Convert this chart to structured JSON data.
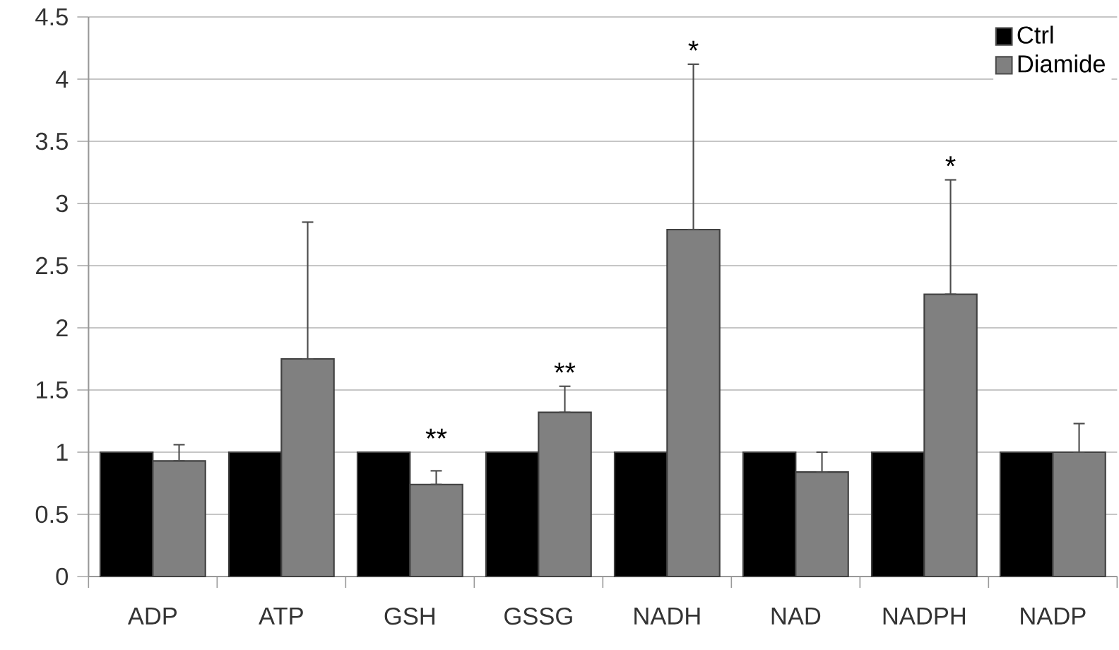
{
  "chart_data": {
    "type": "bar",
    "categories": [
      "ADP",
      "ATP",
      "GSH",
      "GSSG",
      "NADH",
      "NAD",
      "NADPH",
      "NADP"
    ],
    "series": [
      {
        "name": "Ctrl",
        "color": "#000000",
        "values": [
          1,
          1,
          1,
          1,
          1,
          1,
          1,
          1
        ]
      },
      {
        "name": "Diamide",
        "color": "#808080",
        "values": [
          0.93,
          1.75,
          0.74,
          1.32,
          2.79,
          0.84,
          2.27,
          1.0
        ],
        "errors": [
          [
            0.93,
            1.06
          ],
          [
            1.75,
            2.85
          ],
          [
            0.74,
            0.85
          ],
          [
            1.32,
            1.53
          ],
          [
            2.79,
            4.12
          ],
          [
            0.84,
            1.0
          ],
          [
            2.27,
            3.19
          ],
          [
            1.0,
            1.23
          ]
        ]
      }
    ],
    "ylim": [
      0,
      4.5
    ],
    "yticks": [
      0,
      0.5,
      1,
      1.5,
      2,
      2.5,
      3,
      3.5,
      4,
      4.5
    ],
    "grid": "y",
    "legend": "top right",
    "annotations": [
      "**",
      "**",
      "*",
      "*"
    ]
  }
}
